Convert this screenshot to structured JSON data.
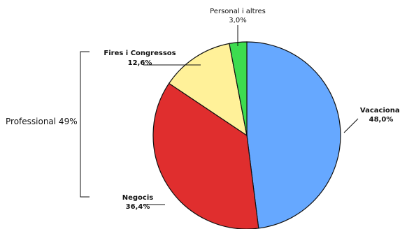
{
  "chart_data": {
    "type": "pie",
    "slices": [
      {
        "label": "Vacacional",
        "value": 48.0,
        "value_label": "48,0%",
        "color": "#66a8ff"
      },
      {
        "label": "Negocis",
        "value": 36.4,
        "value_label": "36,4%",
        "color": "#e02e2e"
      },
      {
        "label": "Fires i Congressos",
        "value": 12.6,
        "value_label": "12,6%",
        "color": "#fff199"
      },
      {
        "label": "Personal i altres",
        "value": 3.0,
        "value_label": "3,0%",
        "color": "#3ddc4f"
      }
    ],
    "start_angle": "12 o'clock",
    "direction": "clockwise",
    "group_bracket": {
      "label": "Professional 49%",
      "covers": [
        "Negocis",
        "Fires i Congressos"
      ]
    }
  }
}
